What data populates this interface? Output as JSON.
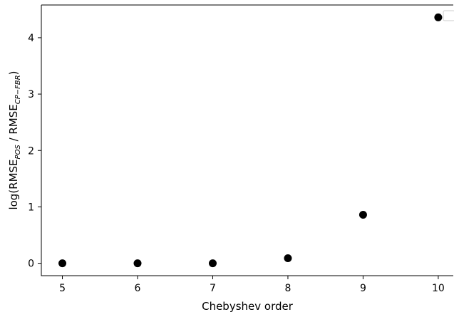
{
  "chart_data": {
    "type": "scatter",
    "title": "",
    "xlabel": "Chebyshev order",
    "ylabel": {
      "prefix": "log(RMSE",
      "sub1": "POS",
      "middle": " / RMSE",
      "sub2": "CP−FBR",
      "suffix": ")"
    },
    "x": [
      5,
      6,
      7,
      8,
      9,
      10
    ],
    "y": [
      0.0,
      0.0,
      0.0,
      0.09,
      0.86,
      4.36
    ],
    "xlim": [
      4.72,
      10.2
    ],
    "ylim": [
      -0.22,
      4.58
    ],
    "xticks": [
      "5",
      "6",
      "7",
      "8",
      "9",
      "10"
    ],
    "yticks": [
      "0",
      "1",
      "2",
      "3",
      "4"
    ],
    "marker_color": "#000000",
    "legend": {
      "placement": "top-right",
      "entries": []
    },
    "grid": false
  }
}
